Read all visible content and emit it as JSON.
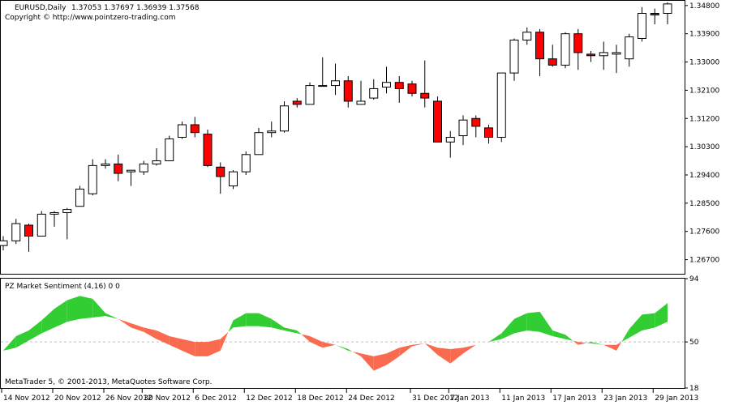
{
  "window": {
    "title": "EURUSD,Daily",
    "ohlc_readout": "1.37053 1.37697 1.36939 1.37568",
    "copyright": "Copyright © http://www.pointzero-trading.com"
  },
  "indicator": {
    "title": "PZ Market Sentiment (4,16) 0 0",
    "footer": "MetaTrader 5, © 2001-2013, MetaQuotes Software Corp."
  },
  "colors": {
    "bull_body": "#ffffff",
    "bear_body": "#ff0000",
    "wick": "#000000",
    "positive_fill": "#32cd32",
    "negative_fill": "#fa6a4e",
    "grid_zero": "#c0c0c0"
  },
  "chart_data": [
    {
      "type": "candlestick",
      "ylim": [
        1.2625,
        1.3495
      ],
      "y_ticks": [
        "1.34800",
        "1.33900",
        "1.33000",
        "1.32100",
        "1.31200",
        "1.30300",
        "1.29400",
        "1.28500",
        "1.27600",
        "1.26700"
      ],
      "x_ticks": [
        "14 Nov 2012",
        "20 Nov 2012",
        "26 Nov 2012",
        "30 Nov 2012",
        "6 Dec 2012",
        "12 Dec 2012",
        "18 Dec 2012",
        "24 Dec 2012",
        "31 Dec 2012",
        "7 Jan 2013",
        "11 Jan 2013",
        "17 Jan 2013",
        "23 Jan 2013",
        "29 Jan 2013"
      ],
      "candles": [
        {
          "o": 1.2715,
          "h": 1.2745,
          "l": 1.27,
          "c": 1.273
        },
        {
          "o": 1.273,
          "h": 1.28,
          "l": 1.272,
          "c": 1.2785
        },
        {
          "o": 1.278,
          "h": 1.2785,
          "l": 1.2695,
          "c": 1.2745
        },
        {
          "o": 1.2745,
          "h": 1.2825,
          "l": 1.2745,
          "c": 1.2815
        },
        {
          "o": 1.2815,
          "h": 1.2825,
          "l": 1.2775,
          "c": 1.282
        },
        {
          "o": 1.282,
          "h": 1.2835,
          "l": 1.2735,
          "c": 1.283
        },
        {
          "o": 1.284,
          "h": 1.2905,
          "l": 1.284,
          "c": 1.2895
        },
        {
          "o": 1.288,
          "h": 1.299,
          "l": 1.2875,
          "c": 1.297
        },
        {
          "o": 1.297,
          "h": 1.299,
          "l": 1.296,
          "c": 1.2975
        },
        {
          "o": 1.2975,
          "h": 1.3005,
          "l": 1.292,
          "c": 1.2945
        },
        {
          "o": 1.295,
          "h": 1.2955,
          "l": 1.2905,
          "c": 1.2955
        },
        {
          "o": 1.295,
          "h": 1.2985,
          "l": 1.294,
          "c": 1.2975
        },
        {
          "o": 1.2975,
          "h": 1.3025,
          "l": 1.297,
          "c": 1.2985
        },
        {
          "o": 1.2985,
          "h": 1.3065,
          "l": 1.2985,
          "c": 1.3055
        },
        {
          "o": 1.306,
          "h": 1.311,
          "l": 1.3055,
          "c": 1.31
        },
        {
          "o": 1.31,
          "h": 1.3125,
          "l": 1.306,
          "c": 1.3075
        },
        {
          "o": 1.307,
          "h": 1.3085,
          "l": 1.2965,
          "c": 1.297
        },
        {
          "o": 1.2965,
          "h": 1.298,
          "l": 1.288,
          "c": 1.2935
        },
        {
          "o": 1.2905,
          "h": 1.2955,
          "l": 1.2895,
          "c": 1.295
        },
        {
          "o": 1.295,
          "h": 1.3015,
          "l": 1.294,
          "c": 1.3005
        },
        {
          "o": 1.3005,
          "h": 1.309,
          "l": 1.3005,
          "c": 1.3075
        },
        {
          "o": 1.3075,
          "h": 1.311,
          "l": 1.306,
          "c": 1.308
        },
        {
          "o": 1.308,
          "h": 1.3175,
          "l": 1.3075,
          "c": 1.316
        },
        {
          "o": 1.3175,
          "h": 1.3185,
          "l": 1.3155,
          "c": 1.3165
        },
        {
          "o": 1.3165,
          "h": 1.3235,
          "l": 1.3165,
          "c": 1.3225
        },
        {
          "o": 1.3225,
          "h": 1.3315,
          "l": 1.3225,
          "c": 1.3225
        },
        {
          "o": 1.3225,
          "h": 1.3295,
          "l": 1.3195,
          "c": 1.324
        },
        {
          "o": 1.324,
          "h": 1.3255,
          "l": 1.3155,
          "c": 1.3175
        },
        {
          "o": 1.3165,
          "h": 1.324,
          "l": 1.3165,
          "c": 1.3175
        },
        {
          "o": 1.3185,
          "h": 1.3245,
          "l": 1.318,
          "c": 1.3215
        },
        {
          "o": 1.322,
          "h": 1.3285,
          "l": 1.32,
          "c": 1.3235
        },
        {
          "o": 1.3235,
          "h": 1.3255,
          "l": 1.317,
          "c": 1.3215
        },
        {
          "o": 1.323,
          "h": 1.324,
          "l": 1.319,
          "c": 1.32
        },
        {
          "o": 1.32,
          "h": 1.3305,
          "l": 1.3155,
          "c": 1.3185
        },
        {
          "o": 1.3175,
          "h": 1.319,
          "l": 1.3045,
          "c": 1.3045
        },
        {
          "o": 1.3045,
          "h": 1.308,
          "l": 1.2995,
          "c": 1.306
        },
        {
          "o": 1.3065,
          "h": 1.313,
          "l": 1.3035,
          "c": 1.3115
        },
        {
          "o": 1.312,
          "h": 1.313,
          "l": 1.306,
          "c": 1.3095
        },
        {
          "o": 1.309,
          "h": 1.31,
          "l": 1.304,
          "c": 1.306
        },
        {
          "o": 1.306,
          "h": 1.3265,
          "l": 1.3045,
          "c": 1.3265
        },
        {
          "o": 1.3265,
          "h": 1.3375,
          "l": 1.324,
          "c": 1.337
        },
        {
          "o": 1.337,
          "h": 1.341,
          "l": 1.3355,
          "c": 1.3395
        },
        {
          "o": 1.3395,
          "h": 1.3405,
          "l": 1.3255,
          "c": 1.331
        },
        {
          "o": 1.331,
          "h": 1.3355,
          "l": 1.3285,
          "c": 1.329
        },
        {
          "o": 1.329,
          "h": 1.3395,
          "l": 1.328,
          "c": 1.339
        },
        {
          "o": 1.339,
          "h": 1.3405,
          "l": 1.3275,
          "c": 1.333
        },
        {
          "o": 1.3325,
          "h": 1.3335,
          "l": 1.33,
          "c": 1.332
        },
        {
          "o": 1.332,
          "h": 1.3365,
          "l": 1.3275,
          "c": 1.333
        },
        {
          "o": 1.3325,
          "h": 1.3355,
          "l": 1.3265,
          "c": 1.333
        },
        {
          "o": 1.331,
          "h": 1.339,
          "l": 1.3285,
          "c": 1.338
        },
        {
          "o": 1.3375,
          "h": 1.3475,
          "l": 1.3365,
          "c": 1.3455
        },
        {
          "o": 1.3455,
          "h": 1.347,
          "l": 1.342,
          "c": 1.345
        },
        {
          "o": 1.3455,
          "h": 1.349,
          "l": 1.342,
          "c": 1.3485
        }
      ]
    },
    {
      "type": "area",
      "title": "PZ Market Sentiment (4,16) 0 0",
      "ylim": [
        18,
        94
      ],
      "y_ticks": [
        "94",
        "50",
        "18"
      ],
      "zero_line": 50,
      "fast": [
        44,
        54,
        58,
        65,
        73,
        79,
        82,
        80,
        70,
        66,
        60,
        57,
        52,
        48,
        44,
        40,
        40,
        44,
        65,
        70,
        70,
        66,
        60,
        58,
        50,
        46,
        48,
        45,
        40,
        30,
        34,
        40,
        47,
        49,
        41,
        35,
        42,
        48,
        50,
        56,
        66,
        70,
        71,
        58,
        55,
        48,
        50,
        48,
        44,
        59,
        69,
        70,
        77
      ],
      "slow": [
        44,
        46,
        51,
        56,
        60,
        64,
        66,
        67,
        68,
        66,
        63,
        60,
        58,
        54,
        52,
        50,
        50,
        52,
        60,
        61,
        61,
        60,
        58,
        56,
        54,
        50,
        48,
        44,
        42,
        40,
        42,
        46,
        48,
        49,
        46,
        45,
        46,
        48,
        50,
        52,
        56,
        58,
        57,
        54,
        52,
        50,
        49,
        48,
        48,
        53,
        58,
        60,
        64
      ]
    }
  ]
}
